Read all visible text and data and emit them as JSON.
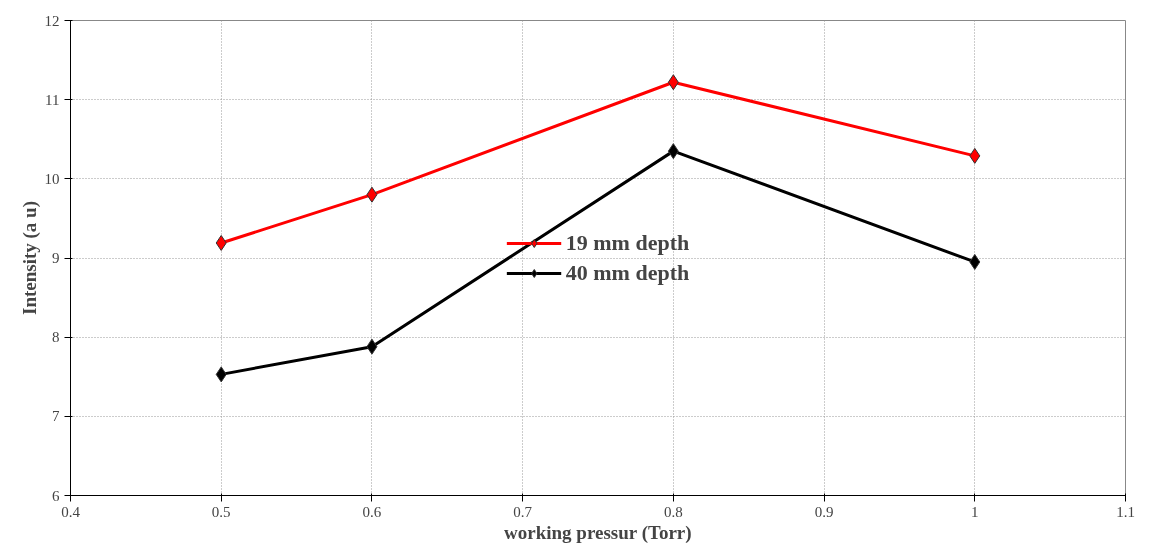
{
  "chart_data": {
    "type": "line",
    "xlabel": "working pressur (Torr)",
    "ylabel": "Intensity (a u)",
    "x": [
      0.5,
      0.6,
      0.8,
      1.0
    ],
    "series": [
      {
        "name": "19 mm depth",
        "color": "#ff0000",
        "values": [
          9.19,
          9.8,
          11.22,
          10.29
        ]
      },
      {
        "name": "40 mm depth",
        "color": "#000000",
        "values": [
          7.53,
          7.88,
          10.35,
          8.95
        ]
      }
    ],
    "xlim": [
      0.4,
      1.1
    ],
    "xticks": [
      0.4,
      0.5,
      0.6,
      0.7,
      0.8,
      0.9,
      1,
      1.1
    ],
    "ylim": [
      6,
      12
    ],
    "yticks": [
      6,
      7,
      8,
      9,
      10,
      11,
      12
    ],
    "grid": true,
    "legend": "center",
    "marker": "diamond",
    "line_style": "solid"
  }
}
